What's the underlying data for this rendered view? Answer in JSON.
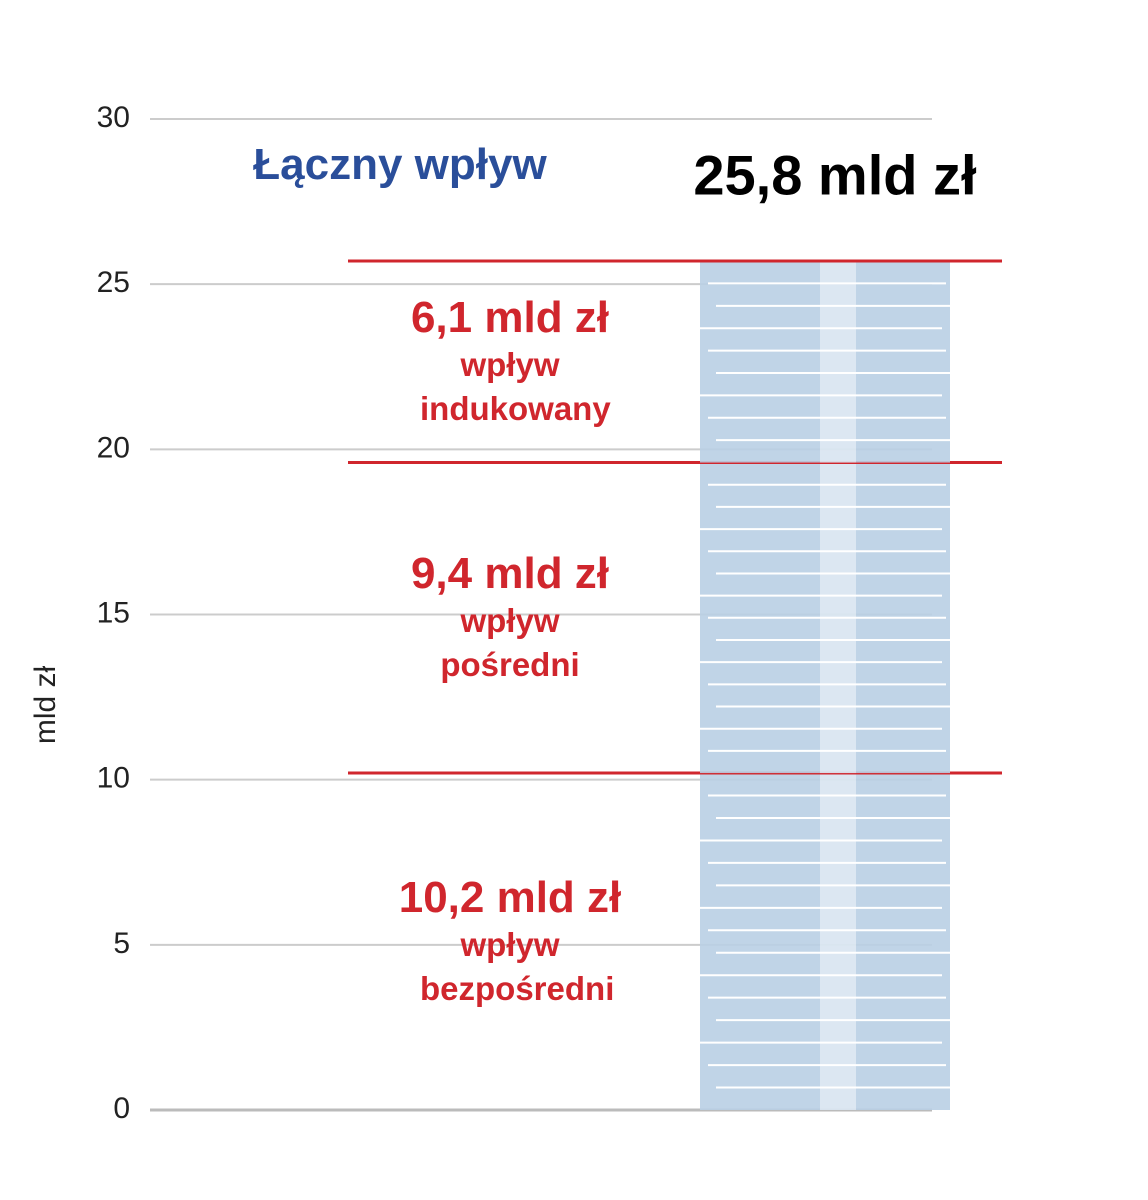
{
  "chart_data": {
    "type": "stacked_bar",
    "title": "Łączny wpływ",
    "total": {
      "value": 25.8,
      "value_label": "25,8 mld zł"
    },
    "ylabel": "mld zł",
    "ylim": [
      0,
      30
    ],
    "yticks": [
      0,
      5,
      10,
      15,
      20,
      25,
      30
    ],
    "grid": true,
    "series": [
      {
        "name": "wpływ bezpośredni",
        "color": "#b9cfe4",
        "values": [
          10.2
        ],
        "value_labels": [
          "10,2 mld zł"
        ]
      },
      {
        "name": "wpływ pośredni",
        "color": "#b9cfe4",
        "values": [
          9.4
        ],
        "value_labels": [
          "9,4 mld zł"
        ]
      },
      {
        "name": "wpływ indukowany",
        "color": "#b9cfe4",
        "values": [
          6.1
        ],
        "value_labels": [
          "6,1 mld zł"
        ]
      }
    ]
  }
}
